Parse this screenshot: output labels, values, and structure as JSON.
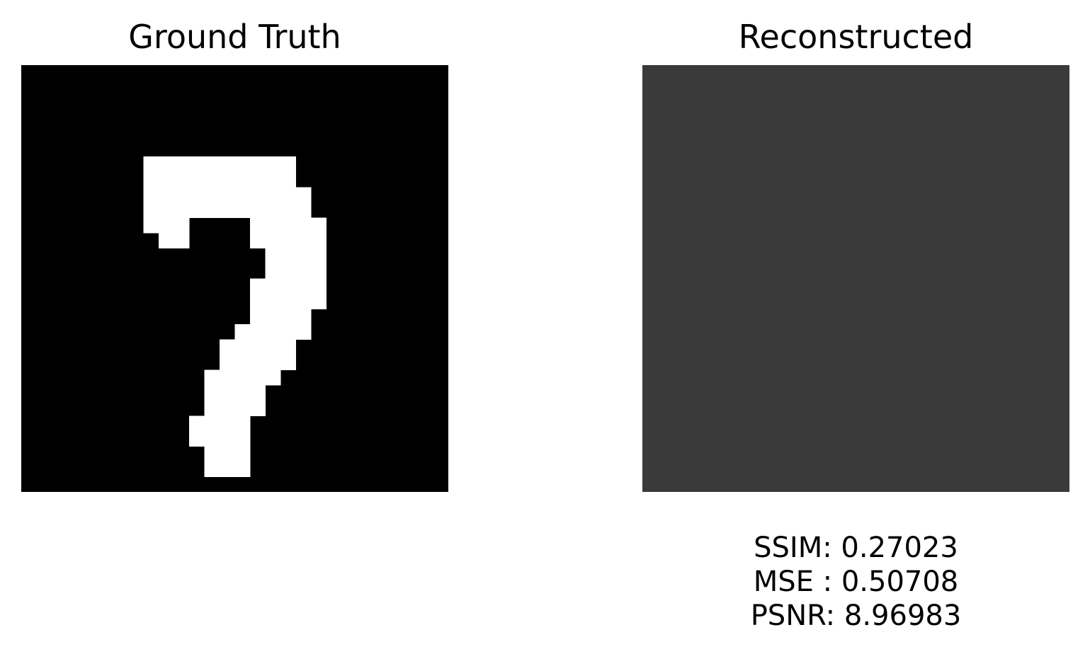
{
  "panels": {
    "left": {
      "title": "Ground Truth",
      "grid_size": 28,
      "background": "#000000",
      "foreground": "#ffffff",
      "pixels_on": [
        [
          8,
          6
        ],
        [
          9,
          6
        ],
        [
          10,
          6
        ],
        [
          11,
          6
        ],
        [
          12,
          6
        ],
        [
          13,
          6
        ],
        [
          14,
          6
        ],
        [
          15,
          6
        ],
        [
          16,
          6
        ],
        [
          17,
          6
        ],
        [
          8,
          7
        ],
        [
          9,
          7
        ],
        [
          10,
          7
        ],
        [
          11,
          7
        ],
        [
          12,
          7
        ],
        [
          13,
          7
        ],
        [
          14,
          7
        ],
        [
          15,
          7
        ],
        [
          16,
          7
        ],
        [
          17,
          7
        ],
        [
          8,
          8
        ],
        [
          9,
          8
        ],
        [
          10,
          8
        ],
        [
          11,
          8
        ],
        [
          12,
          8
        ],
        [
          13,
          8
        ],
        [
          14,
          8
        ],
        [
          15,
          8
        ],
        [
          16,
          8
        ],
        [
          17,
          8
        ],
        [
          18,
          8
        ],
        [
          8,
          9
        ],
        [
          9,
          9
        ],
        [
          10,
          9
        ],
        [
          11,
          9
        ],
        [
          12,
          9
        ],
        [
          13,
          9
        ],
        [
          14,
          9
        ],
        [
          15,
          9
        ],
        [
          16,
          9
        ],
        [
          17,
          9
        ],
        [
          18,
          9
        ],
        [
          8,
          10
        ],
        [
          9,
          10
        ],
        [
          10,
          10
        ],
        [
          15,
          10
        ],
        [
          16,
          10
        ],
        [
          17,
          10
        ],
        [
          18,
          10
        ],
        [
          19,
          10
        ],
        [
          9,
          11
        ],
        [
          10,
          11
        ],
        [
          15,
          11
        ],
        [
          16,
          11
        ],
        [
          17,
          11
        ],
        [
          18,
          11
        ],
        [
          19,
          11
        ],
        [
          16,
          12
        ],
        [
          17,
          12
        ],
        [
          18,
          12
        ],
        [
          19,
          12
        ],
        [
          16,
          13
        ],
        [
          17,
          13
        ],
        [
          18,
          13
        ],
        [
          19,
          13
        ],
        [
          15,
          14
        ],
        [
          16,
          14
        ],
        [
          17,
          14
        ],
        [
          18,
          14
        ],
        [
          19,
          14
        ],
        [
          15,
          15
        ],
        [
          16,
          15
        ],
        [
          17,
          15
        ],
        [
          18,
          15
        ],
        [
          19,
          15
        ],
        [
          15,
          16
        ],
        [
          16,
          16
        ],
        [
          17,
          16
        ],
        [
          18,
          16
        ],
        [
          14,
          17
        ],
        [
          15,
          17
        ],
        [
          16,
          17
        ],
        [
          17,
          17
        ],
        [
          18,
          17
        ],
        [
          13,
          18
        ],
        [
          14,
          18
        ],
        [
          15,
          18
        ],
        [
          16,
          18
        ],
        [
          17,
          18
        ],
        [
          13,
          19
        ],
        [
          14,
          19
        ],
        [
          15,
          19
        ],
        [
          16,
          19
        ],
        [
          17,
          19
        ],
        [
          12,
          20
        ],
        [
          13,
          20
        ],
        [
          14,
          20
        ],
        [
          15,
          20
        ],
        [
          16,
          20
        ],
        [
          12,
          21
        ],
        [
          13,
          21
        ],
        [
          14,
          21
        ],
        [
          15,
          21
        ],
        [
          12,
          22
        ],
        [
          13,
          22
        ],
        [
          14,
          22
        ],
        [
          15,
          22
        ],
        [
          11,
          23
        ],
        [
          12,
          23
        ],
        [
          13,
          23
        ],
        [
          14,
          23
        ],
        [
          11,
          24
        ],
        [
          12,
          24
        ],
        [
          13,
          24
        ],
        [
          14,
          24
        ],
        [
          12,
          25
        ],
        [
          13,
          25
        ],
        [
          14,
          25
        ],
        [
          12,
          26
        ],
        [
          13,
          26
        ],
        [
          14,
          26
        ]
      ]
    },
    "right": {
      "title": "Reconstructed",
      "fill": "#3a3a3a"
    }
  },
  "metrics": {
    "ssim": "SSIM: 0.27023",
    "mse": "MSE : 0.50708",
    "psnr": "PSNR: 8.96983"
  }
}
